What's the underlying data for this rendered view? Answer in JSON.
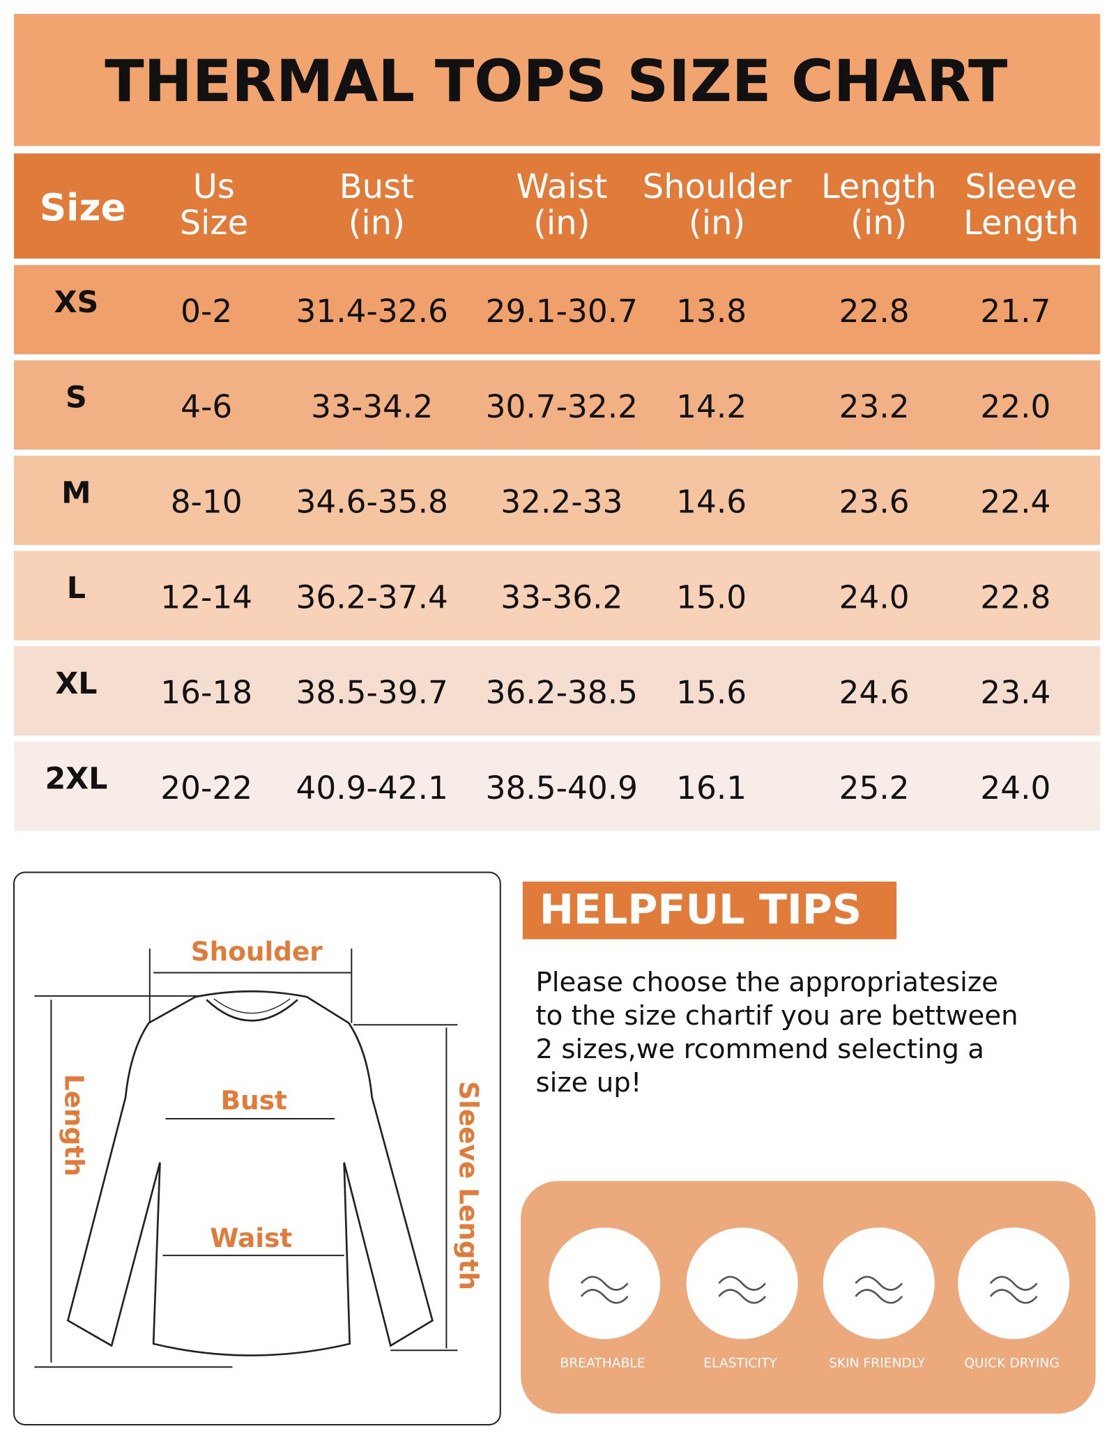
{
  "header": {
    "title": "THERMAL TOPS SIZE CHART"
  },
  "table": {
    "headers": [
      [
        "Size"
      ],
      [
        "Us",
        "Size"
      ],
      [
        "Bust",
        "(in)"
      ],
      [
        "Waist",
        "(in)"
      ],
      [
        "Shoulder",
        "(in)"
      ],
      [
        "Length",
        "(in)"
      ],
      [
        "Sleeve",
        "Length"
      ]
    ],
    "rows": [
      [
        "XS",
        "0-2",
        "31.4-32.6",
        "29.1-30.7",
        "13.8",
        "22.8",
        "21.7"
      ],
      [
        "S",
        "4-6",
        "33-34.2",
        "30.7-32.2",
        "14.2",
        "23.2",
        "22.0"
      ],
      [
        "M",
        "8-10",
        "34.6-35.8",
        "32.2-33",
        "14.6",
        "23.6",
        "22.4"
      ],
      [
        "L",
        "12-14",
        "36.2-37.4",
        "33-36.2",
        "15.0",
        "24.0",
        "22.8"
      ],
      [
        "XL",
        "16-18",
        "38.5-39.7",
        "36.2-38.5",
        "15.6",
        "24.6",
        "23.4"
      ],
      [
        "2XL",
        "20-22",
        "40.9-42.1",
        "38.5-40.9",
        "16.1",
        "25.2",
        "24.0"
      ]
    ]
  },
  "diagram": {
    "shoulder": "Shoulder",
    "bust": "Bust",
    "waist": "Waist",
    "length": "Length",
    "sleeve": "Sleeve Length"
  },
  "tips": {
    "title": "HELPFUL TIPS",
    "lines": [
      "Please choose the appropriatesize",
      "to the size chartif you are bettween",
      "2 sizes,we rcommend selecting a",
      "size up!"
    ]
  },
  "features": [
    "BREATHABLE",
    "ELASTICITY",
    "SKIN FRIENDLY",
    "QUICK DRYING"
  ]
}
